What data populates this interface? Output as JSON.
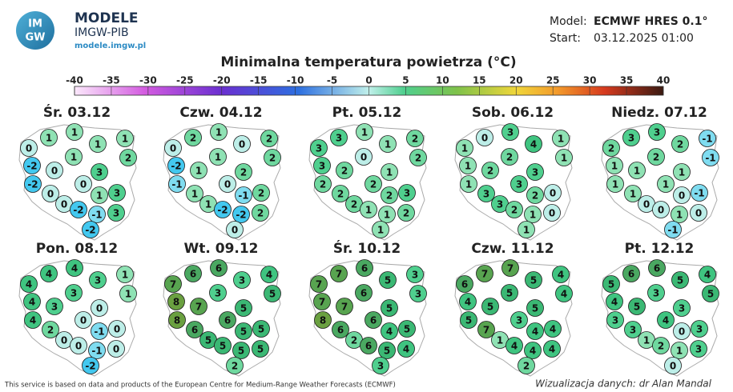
{
  "header": {
    "logo_text": [
      "IM",
      "GW"
    ],
    "brand": "MODELE",
    "org": "IMGW-PIB",
    "url": "modele.imgw.pl",
    "model_label": "Model:",
    "model": "ECMWF HRES 0.1°",
    "start_label": "Start:",
    "start": "03.12.2025 01:00"
  },
  "title": "Minimalna temperatura powietrza (°C)",
  "colorbar": {
    "ticks": [
      -40,
      -35,
      -30,
      -25,
      -20,
      -15,
      -10,
      -5,
      0,
      5,
      10,
      15,
      20,
      25,
      30,
      35,
      40
    ]
  },
  "panels": [
    {
      "title": "Śr. 03.12",
      "values": [
        1,
        1,
        0,
        1,
        1,
        1,
        2,
        -2,
        0,
        3,
        -2,
        0,
        1,
        3,
        0,
        0,
        -2,
        -1,
        3,
        -2
      ]
    },
    {
      "title": "Czw. 04.12",
      "values": [
        2,
        1,
        0,
        0,
        2,
        1,
        2,
        -2,
        1,
        2,
        -1,
        0,
        -1,
        2,
        1,
        1,
        -2,
        -2,
        2,
        0
      ]
    },
    {
      "title": "Pt. 05.12",
      "values": [
        3,
        1,
        3,
        1,
        2,
        0,
        2,
        3,
        2,
        1,
        2,
        2,
        2,
        3,
        2,
        2,
        1,
        1,
        2,
        1
      ]
    },
    {
      "title": "Sob. 06.12",
      "values": [
        0,
        3,
        1,
        4,
        1,
        2,
        1,
        1,
        2,
        3,
        1,
        3,
        2,
        0,
        3,
        3,
        2,
        1,
        0,
        1
      ]
    },
    {
      "title": "Niedz. 07.12",
      "values": [
        3,
        3,
        2,
        2,
        -1,
        2,
        -1,
        1,
        1,
        1,
        1,
        1,
        0,
        -1,
        1,
        0,
        0,
        1,
        0,
        -1
      ]
    },
    {
      "title": "Pon. 08.12",
      "values": [
        4,
        4,
        4,
        3,
        1,
        3,
        1,
        4,
        3,
        0,
        4,
        0,
        -1,
        0,
        2,
        0,
        0,
        -1,
        0,
        -2
      ]
    },
    {
      "title": "Wt. 09.12",
      "values": [
        6,
        6,
        7,
        3,
        4,
        3,
        5,
        8,
        7,
        5,
        8,
        6,
        5,
        5,
        6,
        5,
        5,
        5,
        5,
        2
      ]
    },
    {
      "title": "Śr. 10.12",
      "values": [
        7,
        6,
        7,
        5,
        3,
        6,
        3,
        7,
        7,
        5,
        8,
        6,
        4,
        5,
        6,
        2,
        6,
        5,
        4,
        3
      ]
    },
    {
      "title": "Czw. 11.12",
      "values": [
        7,
        7,
        6,
        5,
        4,
        5,
        4,
        4,
        5,
        5,
        5,
        3,
        4,
        4,
        7,
        1,
        4,
        4,
        4,
        2
      ]
    },
    {
      "title": "Pt. 12.12",
      "values": [
        6,
        6,
        5,
        5,
        4,
        3,
        5,
        4,
        5,
        3,
        3,
        4,
        0,
        3,
        3,
        1,
        2,
        1,
        3,
        0
      ]
    }
  ],
  "footer": {
    "source": "This service is based on data and products of the European Centre for Medium-Range Weather Forecasts (ECMWF)",
    "author": "Wizualizacja danych: dr Alan Mandal"
  }
}
